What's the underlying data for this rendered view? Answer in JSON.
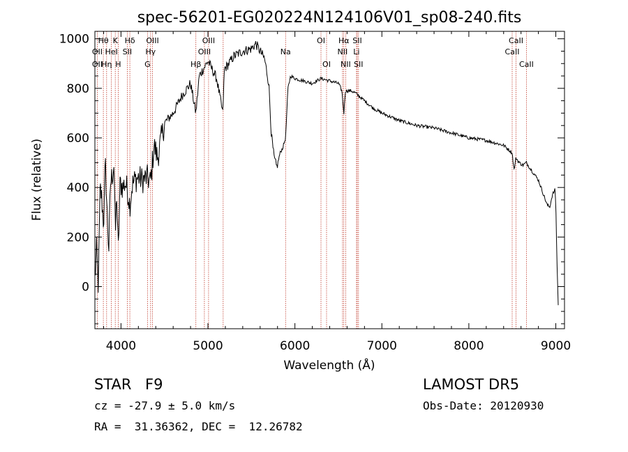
{
  "chart_data": {
    "type": "line",
    "title": "spec-56201-EG020224N124106V01_sp08-240.fits",
    "xlabel": "Wavelength (Å)",
    "ylabel": "Flux (relative)",
    "xlim": [
      3700,
      9100
    ],
    "ylim": [
      -170,
      1030
    ],
    "xticks": [
      4000,
      5000,
      6000,
      7000,
      8000,
      9000
    ],
    "yticks": [
      0,
      200,
      400,
      600,
      800,
      1000
    ],
    "grid": false,
    "legend": "none",
    "series": [
      {
        "x": [
          3700,
          3720,
          3740,
          3760,
          3780,
          3800,
          3820,
          3840,
          3860,
          3880,
          3900,
          3920,
          3935,
          3950,
          3968,
          3990,
          4020,
          4050,
          4080,
          4102,
          4130,
          4160,
          4200,
          4250,
          4300,
          4340,
          4380,
          4420,
          4500,
          4600,
          4700,
          4800,
          4861,
          4900,
          5000,
          5100,
          5170,
          5190,
          5220,
          5300,
          5400,
          5500,
          5550,
          5600,
          5650,
          5700,
          5730,
          5760,
          5790,
          5810,
          5830,
          5860,
          5893,
          5920,
          5950,
          6000,
          6100,
          6200,
          6300,
          6400,
          6500,
          6540,
          6563,
          6580,
          6650,
          6700,
          6800,
          6900,
          7000,
          7200,
          7400,
          7600,
          7800,
          8000,
          8200,
          8400,
          8498,
          8520,
          8542,
          8580,
          8620,
          8662,
          8700,
          8800,
          8900,
          8930,
          8960,
          8990,
          9000,
          9010,
          9020,
          9030
        ],
        "y": [
          30,
          150,
          0,
          400,
          350,
          250,
          500,
          300,
          150,
          420,
          450,
          500,
          200,
          380,
          130,
          420,
          400,
          420,
          380,
          330,
          410,
          430,
          440,
          430,
          440,
          420,
          570,
          520,
          660,
          700,
          770,
          820,
          700,
          850,
          910,
          840,
          700,
          880,
          890,
          930,
          950,
          960,
          980,
          950,
          920,
          820,
          610,
          520,
          480,
          510,
          540,
          560,
          600,
          800,
          850,
          840,
          830,
          820,
          840,
          830,
          820,
          790,
          700,
          790,
          790,
          780,
          750,
          720,
          700,
          670,
          650,
          640,
          620,
          600,
          590,
          570,
          540,
          470,
          520,
          500,
          490,
          500,
          480,
          430,
          330,
          320,
          370,
          390,
          340,
          150,
          20,
          -100
        ]
      }
    ],
    "line_labels": [
      {
        "name": "Hθ",
        "x": 3797,
        "row": 1
      },
      {
        "name": "OII",
        "x": 3727,
        "row": 2
      },
      {
        "name": "OII",
        "x": 3727,
        "row": 3
      },
      {
        "name": "Hη",
        "x": 3835,
        "row": 3
      },
      {
        "name": "K",
        "x": 3934,
        "row": 1
      },
      {
        "name": "HeI",
        "x": 3889,
        "row": 2
      },
      {
        "name": "H",
        "x": 3968,
        "row": 3
      },
      {
        "name": "Hδ",
        "x": 4102,
        "row": 1
      },
      {
        "name": "SII",
        "x": 4072,
        "row": 2
      },
      {
        "name": "OIII",
        "x": 4363,
        "row": 1
      },
      {
        "name": "Hγ",
        "x": 4340,
        "row": 2
      },
      {
        "name": "G",
        "x": 4305,
        "row": 3
      },
      {
        "name": "OIII",
        "x": 5007,
        "row": 1
      },
      {
        "name": "OIII",
        "x": 4959,
        "row": 2
      },
      {
        "name": "Hβ",
        "x": 4861,
        "row": 3
      },
      {
        "name": "Na",
        "x": 5893,
        "row": 2
      },
      {
        "name": "OI",
        "x": 6300,
        "row": 1
      },
      {
        "name": "OI",
        "x": 6364,
        "row": 3
      },
      {
        "name": "Hα",
        "x": 6563,
        "row": 1
      },
      {
        "name": "SII",
        "x": 6717,
        "row": 1
      },
      {
        "name": "NII",
        "x": 6548,
        "row": 2
      },
      {
        "name": "Li",
        "x": 6708,
        "row": 2
      },
      {
        "name": "NII",
        "x": 6584,
        "row": 3
      },
      {
        "name": "SII",
        "x": 6731,
        "row": 3
      },
      {
        "name": "CaII",
        "x": 8542,
        "row": 1
      },
      {
        "name": "CaII",
        "x": 8498,
        "row": 2
      },
      {
        "name": "CaII",
        "x": 8662,
        "row": 3
      }
    ],
    "marker_lines_x": [
      3727,
      3797,
      3835,
      3889,
      3934,
      3968,
      4072,
      4102,
      4305,
      4340,
      4363,
      4861,
      4959,
      5007,
      5175,
      5893,
      6300,
      6364,
      6548,
      6563,
      6584,
      6708,
      6717,
      6731,
      8498,
      8542,
      8662
    ]
  },
  "info": {
    "object_class": "STAR",
    "subclass": "F9",
    "survey": "LAMOST DR5",
    "cz": "cz = -27.9 ± 5.0 km/s",
    "obs_date": "Obs-Date: 20120930",
    "coords": "RA =  31.36362, DEC =  12.26782"
  },
  "colors": {
    "spectrum": "#000000",
    "marker_lines": "#c0392b",
    "axes": "#000000"
  }
}
